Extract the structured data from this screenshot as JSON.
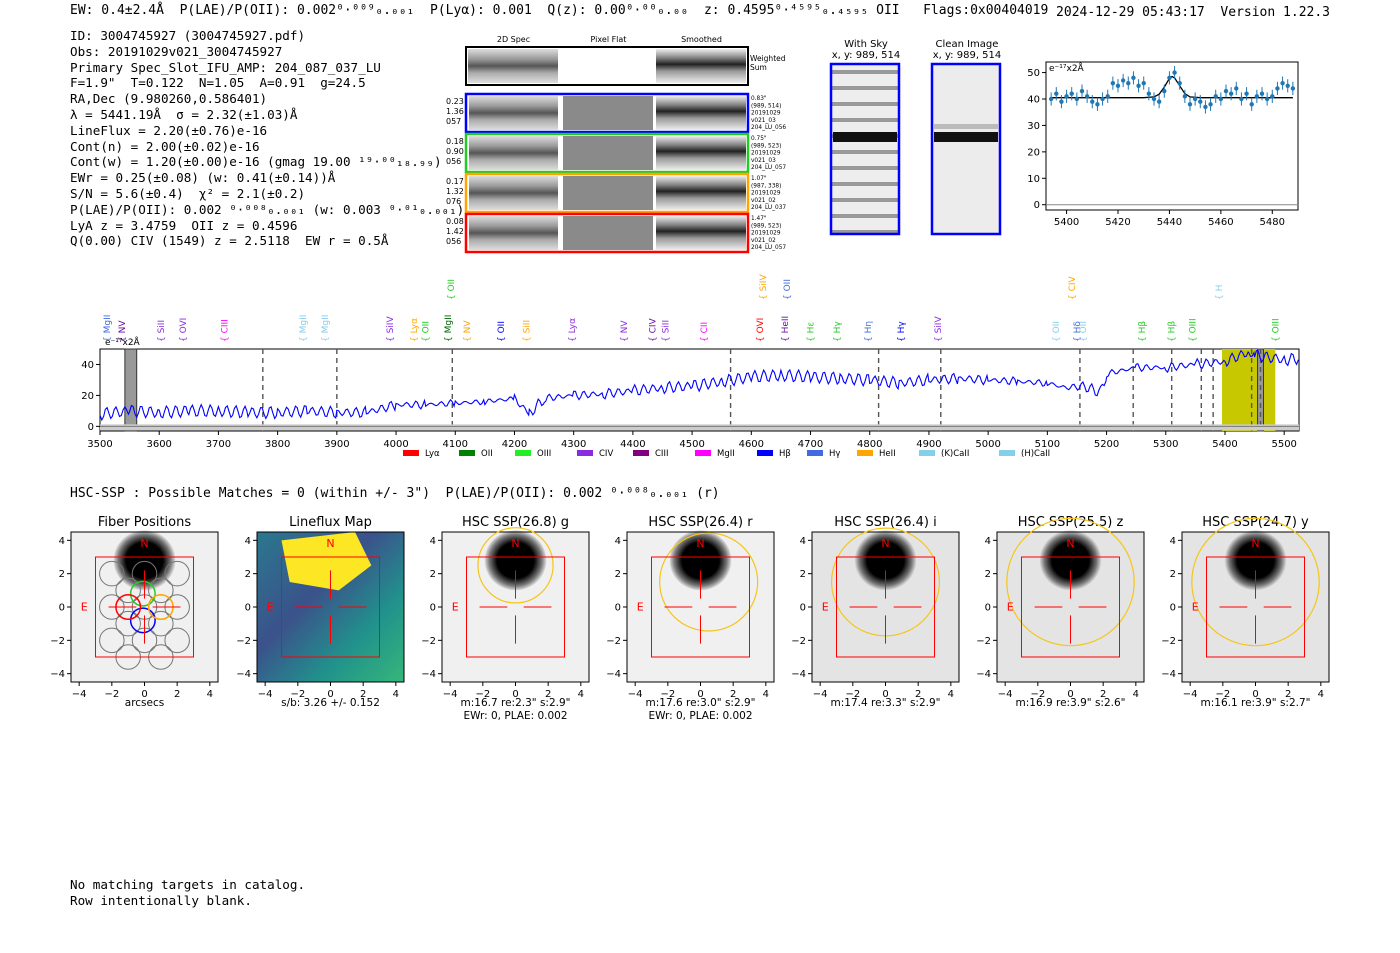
{
  "header": {
    "summary": "EW: 0.4±2.4Å  P(LAE)/P(OII): 0.002⁰·⁰⁰⁹₀.₀₀₁  P(Lyα): 0.001  Q(z): 0.00⁰·⁰⁰₀.₀₀  z: 0.4595⁰·⁴⁵⁹⁵₀.₄₅₉₅ OII   Flags:0x00404019",
    "timestamp": "2024-12-29 05:43:17",
    "version": "Version 1.22.3"
  },
  "info_lines": [
    "ID: 3004745927 (3004745927.pdf)",
    "Obs: 20191029v021_3004745927",
    "Primary Spec_Slot_IFU_AMP: 204_087_037_LU",
    "F=1.9\"  T=0.122  N=1.05  A=0.91  g=24.5",
    "RA,Dec (9.980260,0.586401)",
    "λ = 5441.19Å  σ = 2.32(±1.03)Å",
    "LineFlux = 2.20(±0.76)e-16",
    "Cont(n) = 2.00(±0.02)e-16",
    "Cont(w) = 1.20(±0.00)e-16 (gmag 19.00 ¹⁹·⁰⁰₁₈.₉₉)",
    "EWr = 0.25(±0.08) (w: 0.41(±0.14))Å",
    "S/N = 5.6(±0.4)  χ² = 2.1(±0.2)",
    "P(LAE)/P(OII): 0.002 ⁰·⁰⁰⁸₀.₀₀₁ (w: 0.003 ⁰·⁰¹₀.₀₀₁)",
    "LyA z = 3.4759  OII z = 0.4596",
    "Q(0.00) CIV (1549) z = 2.5118  EW r = 0.5Å"
  ],
  "cutouts": {
    "col_labels": [
      "2D Spec",
      "Pixel Flat",
      "Smoothed"
    ],
    "weighted_label": [
      "Weighted",
      "Sum"
    ],
    "rows": [
      {
        "color": "#0000ff",
        "left": [
          "0.23",
          "1.36",
          "057"
        ],
        "right": [
          "0.83\"",
          "(989, 514)",
          "20191029",
          "v021_03",
          "204_LU_056"
        ]
      },
      {
        "color": "#22cc22",
        "left": [
          "0.18",
          "0.90",
          "056"
        ],
        "right": [
          "0.75\"",
          "(989, 523)",
          "20191029",
          "v021_03",
          "204_LU_057"
        ]
      },
      {
        "color": "#ffa500",
        "left": [
          "0.17",
          "1.32",
          "076"
        ],
        "right": [
          "1.07\"",
          "(987, 338)",
          "20191029",
          "v021_02",
          "204_LU_037"
        ]
      },
      {
        "color": "#ff0000",
        "left": [
          "0.08",
          "1.42",
          "056"
        ],
        "right": [
          "1.47\"",
          "(989, 523)",
          "20191029",
          "v021_02",
          "204_LU_057"
        ]
      }
    ]
  },
  "sky": {
    "with_sky": [
      "With Sky",
      "x, y: 989, 514"
    ],
    "clean": [
      "Clean Image",
      "x, y: 989, 514"
    ]
  },
  "zoom_chart": {
    "type": "scatter",
    "ylabel": "e⁻¹⁷x2Å",
    "xticks": [
      5400,
      5420,
      5440,
      5460,
      5480
    ],
    "yticks": [
      0,
      10,
      20,
      30,
      40,
      50
    ],
    "xlim": [
      5392,
      5490
    ],
    "ylim": [
      -2,
      54
    ],
    "color": "#1f77b4",
    "x": [
      5394,
      5396,
      5398,
      5400,
      5402,
      5404,
      5406,
      5408,
      5410,
      5412,
      5414,
      5416,
      5418,
      5420,
      5422,
      5424,
      5426,
      5428,
      5430,
      5432,
      5434,
      5436,
      5438,
      5440,
      5442,
      5444,
      5446,
      5448,
      5450,
      5452,
      5454,
      5456,
      5458,
      5460,
      5462,
      5464,
      5466,
      5468,
      5470,
      5472,
      5474,
      5476,
      5478,
      5480,
      5482,
      5484,
      5486,
      5488
    ],
    "y": [
      40,
      42,
      39,
      41,
      42,
      40,
      43,
      41,
      39,
      38,
      40,
      41,
      46,
      45,
      47,
      46,
      48,
      45,
      46,
      42,
      40,
      39,
      43,
      48,
      50,
      46,
      41,
      38,
      40,
      39,
      37,
      38,
      41,
      40,
      43,
      42,
      44,
      40,
      42,
      38,
      41,
      42,
      40,
      41,
      44,
      46,
      45,
      44
    ],
    "fit_x": [
      5394,
      5430,
      5434,
      5436,
      5438,
      5440,
      5441,
      5442,
      5444,
      5446,
      5448,
      5452,
      5488
    ],
    "fit_y": [
      40.5,
      40.5,
      40.8,
      41.8,
      44.5,
      47.8,
      48.5,
      48.0,
      45.0,
      42.0,
      40.8,
      40.5,
      40.5
    ]
  },
  "spectrum": {
    "type": "line",
    "ylabel": "e⁻¹⁷x2Å",
    "xlim": [
      3500,
      5525
    ],
    "ylim": [
      -3,
      50
    ],
    "xticks": [
      3500,
      3600,
      3700,
      3800,
      3900,
      4000,
      4100,
      4200,
      4300,
      4400,
      4500,
      4600,
      4700,
      4800,
      4900,
      5000,
      5100,
      5200,
      5300,
      5400,
      5500
    ],
    "yticks": [
      0,
      20,
      40
    ],
    "color": "#0000ff",
    "x": [
      3500,
      3550,
      3600,
      3650,
      3700,
      3750,
      3800,
      3850,
      3900,
      3950,
      4000,
      4050,
      4100,
      4150,
      4200,
      4225,
      4250,
      4300,
      4350,
      4400,
      4450,
      4500,
      4550,
      4600,
      4650,
      4700,
      4750,
      4800,
      4850,
      4900,
      4950,
      5000,
      5050,
      5100,
      5130,
      5160,
      5190,
      5200,
      5250,
      5300,
      5350,
      5400,
      5440,
      5450,
      5500,
      5525
    ],
    "y": [
      8,
      10,
      9,
      10,
      10,
      9,
      9,
      10,
      9,
      9,
      14,
      14,
      15,
      16,
      18,
      8,
      18,
      20,
      21,
      23,
      25,
      26,
      29,
      32,
      33,
      32,
      31,
      30,
      28,
      30,
      31,
      30,
      29,
      28,
      25,
      26,
      22,
      34,
      38,
      38,
      40,
      42,
      48,
      46,
      43,
      44
    ],
    "dashed_lines": [
      3775,
      3900,
      4095,
      4565,
      4815,
      4920,
      5155,
      5245,
      5310,
      5360,
      5380,
      5445,
      5460
    ],
    "gray_band": [
      3542,
      3562
    ],
    "yellow_band": [
      5395,
      5485
    ],
    "gray_band2": [
      5455,
      5465
    ],
    "line_labels": [
      {
        "t": "MgII",
        "x": 3512,
        "c": "#4169e1",
        "hi": false
      },
      {
        "t": "NV",
        "x": 3537,
        "c": "#6a0dad",
        "hi": false
      },
      {
        "t": "SiII",
        "x": 3603,
        "c": "#8a2be2",
        "hi": false
      },
      {
        "t": "OVI",
        "x": 3640,
        "c": "#8a2be2",
        "hi": false
      },
      {
        "t": "CIII",
        "x": 3710,
        "c": "#ff00ff",
        "hi": false
      },
      {
        "t": "MgII",
        "x": 3843,
        "c": "#87ceeb",
        "hi": false
      },
      {
        "t": "MgII",
        "x": 3880,
        "c": "#87ceeb",
        "hi": false
      },
      {
        "t": "SiIV",
        "x": 3990,
        "c": "#8a2be2",
        "hi": false
      },
      {
        "t": "Lyα",
        "x": 4030,
        "c": "#ffa500",
        "hi": false
      },
      {
        "t": "OII",
        "x": 4050,
        "c": "#22cc22",
        "hi": false
      },
      {
        "t": "MgII",
        "x": 4088,
        "c": "#006400",
        "hi": false
      },
      {
        "t": "OII",
        "x": 4093,
        "c": "#22cc22",
        "hi": true
      },
      {
        "t": "NV",
        "x": 4120,
        "c": "#ffa500",
        "hi": false
      },
      {
        "t": "OII",
        "x": 4177,
        "c": "#0000ff",
        "hi": false
      },
      {
        "t": "SiII",
        "x": 4220,
        "c": "#ffa500",
        "hi": false
      },
      {
        "t": "Lyα",
        "x": 4297,
        "c": "#8a2be2",
        "hi": false
      },
      {
        "t": "NV",
        "x": 4385,
        "c": "#8a2be2",
        "hi": false
      },
      {
        "t": "CIV",
        "x": 4433,
        "c": "#6a0dad",
        "hi": false
      },
      {
        "t": "SiII",
        "x": 4455,
        "c": "#8a2be2",
        "hi": false
      },
      {
        "t": "CII",
        "x": 4520,
        "c": "#ff00ff",
        "hi": false
      },
      {
        "t": "OVI",
        "x": 4615,
        "c": "#ff0000",
        "hi": false
      },
      {
        "t": "SiIV",
        "x": 4620,
        "c": "#ffa500",
        "hi": true
      },
      {
        "t": "HeII",
        "x": 4657,
        "c": "#6a0dad",
        "hi": false
      },
      {
        "t": "OII",
        "x": 4660,
        "c": "#4169e1",
        "hi": true
      },
      {
        "t": "Hε",
        "x": 4700,
        "c": "#22cc22",
        "hi": false
      },
      {
        "t": "Hγ",
        "x": 4745,
        "c": "#22cc22",
        "hi": false
      },
      {
        "t": "Hη",
        "x": 4797,
        "c": "#4169e1",
        "hi": false
      },
      {
        "t": "Hγ",
        "x": 4853,
        "c": "#0000ff",
        "hi": false
      },
      {
        "t": "SiIV",
        "x": 4915,
        "c": "#8a2be2",
        "hi": false
      },
      {
        "t": "OII",
        "x": 5115,
        "c": "#87ceeb",
        "hi": false
      },
      {
        "t": "Hδ",
        "x": 5150,
        "c": "#4169e1",
        "hi": false
      },
      {
        "t": "CIV",
        "x": 5142,
        "c": "#ffa500",
        "hi": true
      },
      {
        "t": "OII",
        "x": 5160,
        "c": "#87ceeb",
        "hi": false
      },
      {
        "t": "Hβ",
        "x": 5260,
        "c": "#22cc22",
        "hi": false
      },
      {
        "t": "Hβ",
        "x": 5310,
        "c": "#22cc22",
        "hi": false
      },
      {
        "t": "H",
        "x": 5390,
        "c": "#87ceeb",
        "hi": true
      },
      {
        "t": "OIII",
        "x": 5345,
        "c": "#22cc22",
        "hi": false
      },
      {
        "t": "OIII",
        "x": 5485,
        "c": "#22cc22",
        "hi": false
      }
    ],
    "legend": [
      {
        "label": "Lyα",
        "color": "#ff0000"
      },
      {
        "label": "OII",
        "color": "#008000"
      },
      {
        "label": "OIII",
        "color": "#22ee22"
      },
      {
        "label": "CIV",
        "color": "#8a2be2"
      },
      {
        "label": "CIII",
        "color": "#800080"
      },
      {
        "label": "MgII",
        "color": "#ff00ff"
      },
      {
        "label": "Hβ",
        "color": "#0000ff"
      },
      {
        "label": "Hγ",
        "color": "#4169e1"
      },
      {
        "label": "HeII",
        "color": "#ffa500"
      },
      {
        "label": "(K)CaII",
        "color": "#87ceeb"
      },
      {
        "label": "(H)CaII",
        "color": "#87ceeb"
      }
    ]
  },
  "hsc": {
    "summary": "HSC-SSP : Possible Matches = 0 (within +/- 3\")  P(LAE)/P(OII): 0.002 ⁰·⁰⁰⁸₀.₀₀₁ (r)",
    "ticks": [
      -4,
      -2,
      0,
      2,
      4
    ],
    "panels": [
      {
        "title": "Fiber Positions",
        "cap1": "arcsecs",
        "cap2": ""
      },
      {
        "title": "Lineflux Map",
        "cap1": "s/b: 3.26 +/- 0.152",
        "cap2": ""
      },
      {
        "title": "HSC SSP(26.8) g",
        "cap1": "m:16.7  re:2.3\"  s:2.9\"",
        "cap2": "EWr: 0, PLAE: 0.002"
      },
      {
        "title": "HSC SSP(26.4) r",
        "cap1": "m:17.6  re:3.0\"  s:2.9\"",
        "cap2": "EWr: 0, PLAE: 0.002"
      },
      {
        "title": "HSC SSP(26.4) i",
        "cap1": "m:17.4  re:3.3\"  s:2.9\"",
        "cap2": ""
      },
      {
        "title": "HSC SSP(25.5) z",
        "cap1": "m:16.9  re:3.9\"  s:2.6\"",
        "cap2": ""
      },
      {
        "title": "HSC SSP(24.7) y",
        "cap1": "m:16.1  re:3.9\"  s:2.7\"",
        "cap2": ""
      }
    ],
    "compass_n": "N",
    "compass_e": "E"
  },
  "footer": [
    "No matching targets in catalog.",
    "Row intentionally blank."
  ]
}
